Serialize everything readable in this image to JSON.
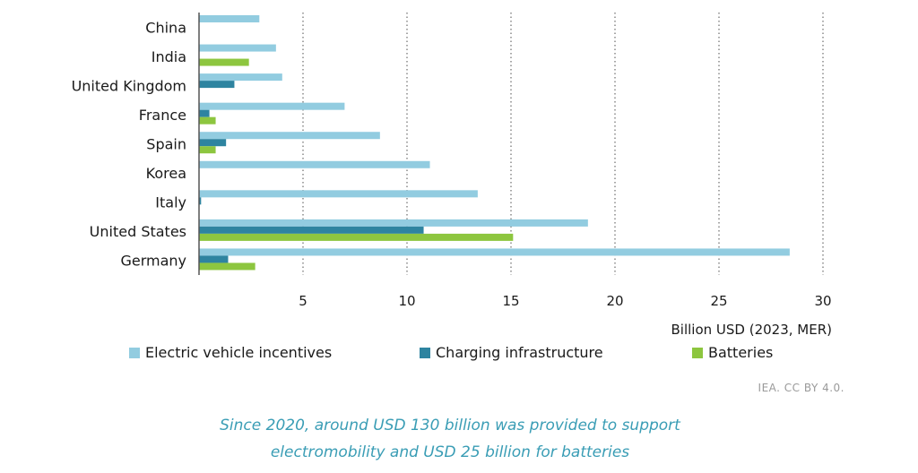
{
  "chart_data": {
    "type": "bar",
    "orientation": "horizontal",
    "title": "",
    "xlabel": "Billion USD (2023, MER)",
    "ylabel": "",
    "xlim": [
      0,
      30
    ],
    "xticks": [
      5,
      10,
      15,
      20,
      25,
      30
    ],
    "grid": "vertical dotted",
    "legend_position": "bottom",
    "categories": [
      "China",
      "India",
      "United Kingdom",
      "France",
      "Spain",
      "Korea",
      "Italy",
      "United States",
      "Germany"
    ],
    "series": [
      {
        "name": "Electric vehicle incentives",
        "color": "#92cce0",
        "values": [
          2.9,
          3.7,
          4.0,
          7.0,
          8.7,
          11.1,
          13.4,
          18.7,
          28.4
        ]
      },
      {
        "name": "Charging infrastructure",
        "color": "#2e84a0",
        "values": [
          0,
          0,
          1.7,
          0.5,
          1.3,
          0,
          0.1,
          10.8,
          1.4
        ]
      },
      {
        "name": "Batteries",
        "color": "#8dc63f",
        "values": [
          0,
          2.4,
          0,
          0.8,
          0.8,
          0,
          0,
          15.1,
          2.7
        ]
      }
    ]
  },
  "source": "IEA. CC BY 4.0.",
  "caption": {
    "line1": "Since 2020, around USD 130 billion was provided to support",
    "line2": "electromobility and USD 25 billion for batteries"
  }
}
